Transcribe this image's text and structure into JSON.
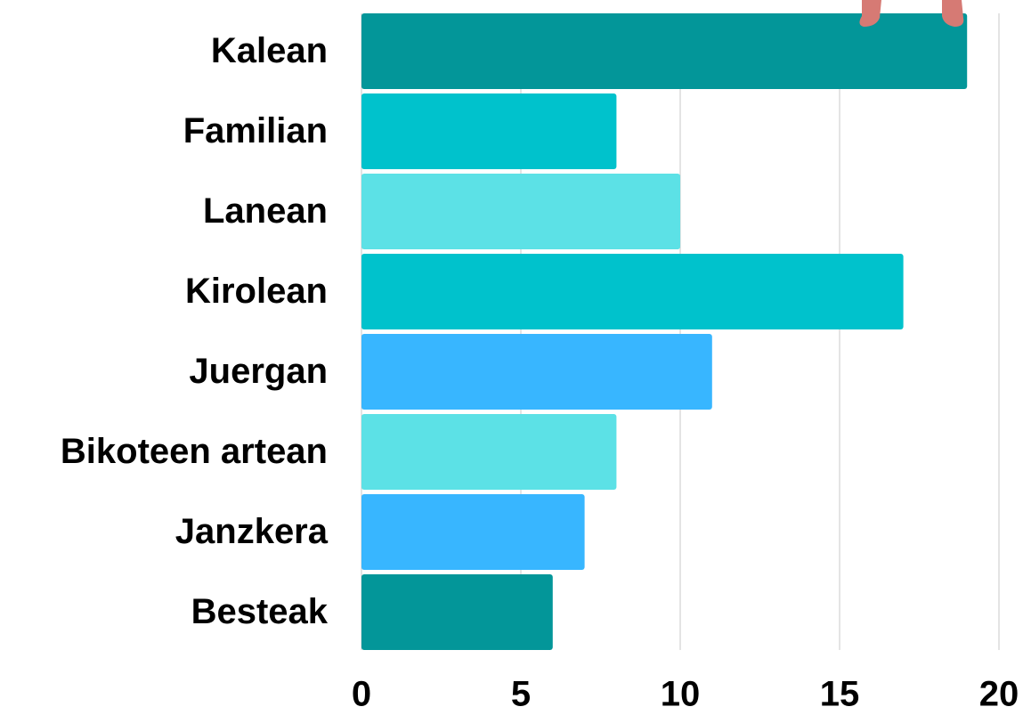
{
  "chart_data": {
    "type": "bar",
    "orientation": "horizontal",
    "categories": [
      "Kalean",
      "Familian",
      "Lanean",
      "Kirolean",
      "Juergan",
      "Bikoteen artean",
      "Janzkera",
      "Besteak"
    ],
    "values": [
      19,
      8,
      10,
      17,
      11,
      8,
      7,
      6
    ],
    "colors": [
      "#039699",
      "#00c2cc",
      "#5ce1e6",
      "#00c2cc",
      "#38b6ff",
      "#5ce1e6",
      "#38b6ff",
      "#039699"
    ],
    "xlim": [
      0,
      20
    ],
    "xticks": [
      0,
      5,
      10,
      15,
      20
    ],
    "grid": true
  }
}
